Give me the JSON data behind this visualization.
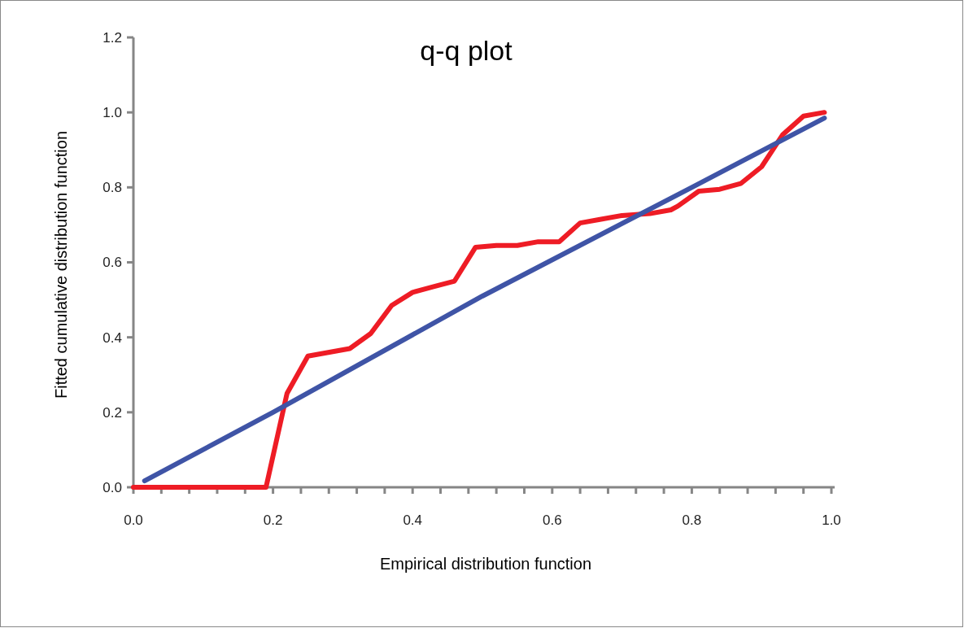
{
  "chart_data": {
    "type": "line",
    "title": "q-q plot",
    "xlabel": "Empirical distribution function",
    "ylabel": "Fitted cumulative distribution function",
    "xlim": [
      0,
      1
    ],
    "ylim": [
      0,
      1.2
    ],
    "xticks": [
      {
        "value": 0,
        "label": "0.0"
      },
      {
        "value": 0.04,
        "label": null
      },
      {
        "value": 0.08,
        "label": null
      },
      {
        "value": 0.12,
        "label": null
      },
      {
        "value": 0.16,
        "label": null
      },
      {
        "value": 0.2,
        "label": "0.2"
      },
      {
        "value": 0.24,
        "label": null
      },
      {
        "value": 0.28,
        "label": null
      },
      {
        "value": 0.32,
        "label": null
      },
      {
        "value": 0.36,
        "label": null
      },
      {
        "value": 0.4,
        "label": "0.4"
      },
      {
        "value": 0.44,
        "label": null
      },
      {
        "value": 0.48,
        "label": null
      },
      {
        "value": 0.52,
        "label": null
      },
      {
        "value": 0.56,
        "label": null
      },
      {
        "value": 0.6,
        "label": "0.6"
      },
      {
        "value": 0.64,
        "label": null
      },
      {
        "value": 0.68,
        "label": null
      },
      {
        "value": 0.72,
        "label": null
      },
      {
        "value": 0.76,
        "label": null
      },
      {
        "value": 0.8,
        "label": "0.8"
      },
      {
        "value": 0.84,
        "label": null
      },
      {
        "value": 0.88,
        "label": null
      },
      {
        "value": 0.92,
        "label": null
      },
      {
        "value": 0.96,
        "label": null
      },
      {
        "value": 1,
        "label": "1.0"
      }
    ],
    "yticks": [
      {
        "value": 0,
        "label": "0.0"
      },
      {
        "value": 0.2,
        "label": "0.2"
      },
      {
        "value": 0.4,
        "label": "0.4"
      },
      {
        "value": 0.6,
        "label": "0.6"
      },
      {
        "value": 0.8,
        "label": "0.8"
      },
      {
        "value": 1,
        "label": "1.0"
      },
      {
        "value": 1.2,
        "label": "1.2"
      }
    ],
    "grid": false,
    "marker": "none",
    "line_style": "solid",
    "series": [
      {
        "color": "#ee1c25",
        "x": [
          0.0,
          0.19,
          0.22,
          0.25,
          0.31,
          0.34,
          0.37,
          0.4,
          0.43,
          0.46,
          0.49,
          0.52,
          0.55,
          0.58,
          0.61,
          0.64,
          0.67,
          0.7,
          0.74,
          0.77,
          0.78,
          0.81,
          0.84,
          0.87,
          0.9,
          0.93,
          0.96,
          0.99
        ],
        "values": [
          0,
          0,
          0.25,
          0.35,
          0.37,
          0.41,
          0.485,
          0.52,
          0.535,
          0.55,
          0.64,
          0.645,
          0.645,
          0.655,
          0.655,
          0.705,
          0.715,
          0.725,
          0.73,
          0.74,
          0.75,
          0.79,
          0.795,
          0.81,
          0.855,
          0.94,
          0.99,
          1.0
        ]
      },
      {
        "color": "#3f54a6",
        "x": [
          0.016,
          0.2,
          0.5,
          0.8,
          0.99
        ],
        "values": [
          0.017,
          0.2,
          0.51,
          0.8,
          0.985
        ]
      }
    ]
  }
}
